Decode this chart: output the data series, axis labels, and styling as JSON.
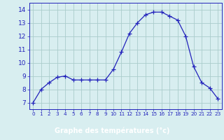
{
  "hours": [
    0,
    1,
    2,
    3,
    4,
    5,
    6,
    7,
    8,
    9,
    10,
    11,
    12,
    13,
    14,
    15,
    16,
    17,
    18,
    19,
    20,
    21,
    22,
    23
  ],
  "temps": [
    7.0,
    8.0,
    8.5,
    8.9,
    9.0,
    8.7,
    8.7,
    8.7,
    8.7,
    8.7,
    9.5,
    10.8,
    12.2,
    13.0,
    13.6,
    13.8,
    13.8,
    13.5,
    13.2,
    12.0,
    9.7,
    8.5,
    8.1,
    7.3
  ],
  "line_color": "#2222bb",
  "marker": "+",
  "marker_size": 4,
  "bg_color": "#d8eef0",
  "grid_color": "#aacccc",
  "xlabel": "Graphe des températures (°c)",
  "label_fg": "#ffffff",
  "label_bg": "#2222bb",
  "tick_color": "#2222bb",
  "ylim": [
    6.5,
    14.5
  ],
  "xlim": [
    -0.5,
    23.5
  ],
  "yticks": [
    7,
    8,
    9,
    10,
    11,
    12,
    13,
    14
  ],
  "xticks": [
    0,
    1,
    2,
    3,
    4,
    5,
    6,
    7,
    8,
    9,
    10,
    11,
    12,
    13,
    14,
    15,
    16,
    17,
    18,
    19,
    20,
    21,
    22,
    23
  ],
  "tick_fontsize": 6.0,
  "ylabel_fontsize": 7.0
}
